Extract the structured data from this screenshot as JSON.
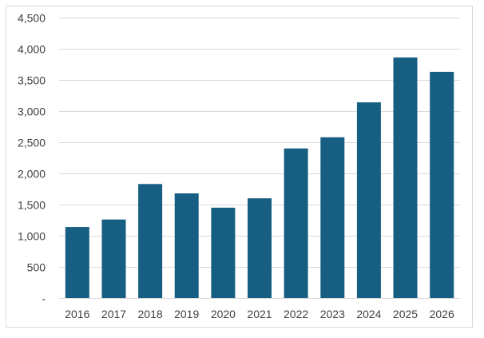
{
  "chart_data": {
    "type": "bar",
    "categories": [
      "2016",
      "2017",
      "2018",
      "2019",
      "2020",
      "2021",
      "2022",
      "2023",
      "2024",
      "2025",
      "2026"
    ],
    "values": [
      1140,
      1260,
      1830,
      1680,
      1450,
      1600,
      2400,
      2580,
      3140,
      3860,
      3630
    ],
    "ylim": [
      0,
      4500
    ],
    "y_ticks": [
      0,
      500,
      1000,
      1500,
      2000,
      2500,
      3000,
      3500,
      4000,
      4500
    ],
    "y_tick_labels": [
      "-",
      "500",
      "1,000",
      "1,500",
      "2,000",
      "2,500",
      "3,000",
      "3,500",
      "4,000",
      "4,500"
    ],
    "grid": true,
    "legend": "none",
    "bar_color": "#165e82"
  }
}
